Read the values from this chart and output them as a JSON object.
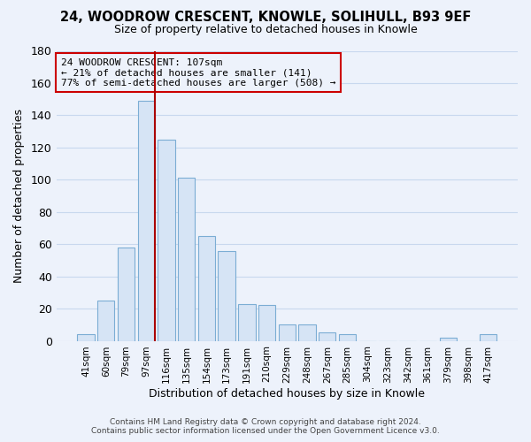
{
  "title": "24, WOODROW CRESCENT, KNOWLE, SOLIHULL, B93 9EF",
  "subtitle": "Size of property relative to detached houses in Knowle",
  "xlabel": "Distribution of detached houses by size in Knowle",
  "ylabel": "Number of detached properties",
  "categories": [
    "41sqm",
    "60sqm",
    "79sqm",
    "97sqm",
    "116sqm",
    "135sqm",
    "154sqm",
    "173sqm",
    "191sqm",
    "210sqm",
    "229sqm",
    "248sqm",
    "267sqm",
    "285sqm",
    "304sqm",
    "323sqm",
    "342sqm",
    "361sqm",
    "379sqm",
    "398sqm",
    "417sqm"
  ],
  "values": [
    4,
    25,
    58,
    149,
    125,
    101,
    65,
    56,
    23,
    22,
    10,
    10,
    5,
    4,
    0,
    0,
    0,
    0,
    2,
    0,
    4
  ],
  "bar_color": "#d6e4f5",
  "bar_edge_color": "#7badd4",
  "highlight_line_color": "#aa0000",
  "annotation_title": "24 WOODROW CRESCENT: 107sqm",
  "annotation_line1": "← 21% of detached houses are smaller (141)",
  "annotation_line2": "77% of semi-detached houses are larger (508) →",
  "annotation_box_edge": "#cc0000",
  "ylim": [
    0,
    180
  ],
  "yticks": [
    0,
    20,
    40,
    60,
    80,
    100,
    120,
    140,
    160,
    180
  ],
  "footnote1": "Contains HM Land Registry data © Crown copyright and database right 2024.",
  "footnote2": "Contains public sector information licensed under the Open Government Licence v3.0.",
  "background_color": "#edf2fb",
  "grid_color": "#c8d8ee"
}
